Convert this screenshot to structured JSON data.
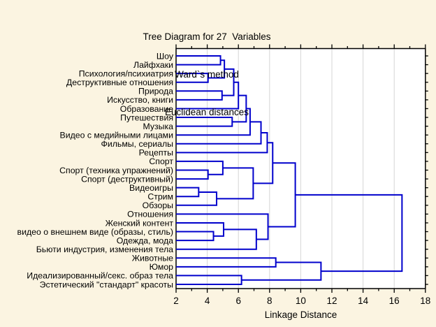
{
  "chart_data": {
    "type": "dendrogram",
    "orientation": "horizontal-leaves-left",
    "title_lines": [
      "Tree Diagram for 27  Variables",
      "Ward`s method",
      "Euclidean distances"
    ],
    "xlabel": "Linkage Distance",
    "x_axis": {
      "min": 2,
      "max": 18,
      "major_tick_step": 2,
      "minor_tick_step": 1,
      "tick_labels": [
        "2",
        "4",
        "6",
        "8",
        "10",
        "12",
        "14",
        "16",
        "18"
      ],
      "gridline_values": [
        4,
        6,
        8,
        10,
        12,
        14,
        16
      ]
    },
    "grid": "vertical-major-only",
    "colors": {
      "line": "#0000CC",
      "background": "#FBF4E1",
      "plot_background": "#FFFFFF",
      "gridline": "#D6D6D6",
      "frame": "#000000",
      "text": "#000000"
    },
    "leaves": [
      "Шоу",
      "Лайфхаки",
      "Психология/психиатрия",
      "Деструктивные отношения",
      "Природа",
      "Искусство, книги",
      "Образование",
      "Путешествия",
      "Музыка",
      "Видео с медийными лицами",
      "Фильмы, сериалы",
      "Рецепты",
      "Спорт",
      "Спорт (техника упражнений)",
      "Спорт (деструктивный)",
      "Видеоигры",
      "Стрим",
      "Обзоры",
      "Отношения",
      "Женский контент",
      "видео о внешнем виде (образы, стиль)",
      "Одежда, мода",
      "Бьюти индустрия, изменения тела",
      "Животные",
      "Юмор",
      "Идеализированный/секс. образ тела",
      "Эстетический \"стандарт\" красоты"
    ],
    "merges": [
      {
        "children": [
          0,
          1
        ],
        "distance": 4.85
      },
      {
        "children": [
          2,
          3
        ],
        "distance": 4.05
      },
      {
        "children": [
          27,
          28
        ],
        "distance": 5.1
      },
      {
        "children": [
          4,
          5
        ],
        "distance": 4.95
      },
      {
        "children": [
          29,
          30
        ],
        "distance": 5.7
      },
      {
        "children": [
          31,
          6
        ],
        "distance": 6.0
      },
      {
        "children": [
          7,
          8
        ],
        "distance": 5.6
      },
      {
        "children": [
          32,
          33
        ],
        "distance": 6.5
      },
      {
        "children": [
          34,
          9
        ],
        "distance": 6.75
      },
      {
        "children": [
          35,
          10
        ],
        "distance": 7.45
      },
      {
        "children": [
          36,
          11
        ],
        "distance": 7.85
      },
      {
        "children": [
          13,
          14
        ],
        "distance": 4.05
      },
      {
        "children": [
          12,
          38
        ],
        "distance": 5.0
      },
      {
        "children": [
          15,
          16
        ],
        "distance": 3.45
      },
      {
        "children": [
          40,
          17
        ],
        "distance": 4.6
      },
      {
        "children": [
          39,
          41
        ],
        "distance": 6.95
      },
      {
        "children": [
          37,
          42
        ],
        "distance": 8.2
      },
      {
        "children": [
          20,
          21
        ],
        "distance": 4.4
      },
      {
        "children": [
          19,
          44
        ],
        "distance": 5.05
      },
      {
        "children": [
          45,
          22
        ],
        "distance": 7.15
      },
      {
        "children": [
          18,
          46
        ],
        "distance": 7.9
      },
      {
        "children": [
          43,
          47
        ],
        "distance": 9.65
      },
      {
        "children": [
          23,
          24
        ],
        "distance": 8.4
      },
      {
        "children": [
          25,
          26
        ],
        "distance": 6.2
      },
      {
        "children": [
          49,
          50
        ],
        "distance": 11.3
      },
      {
        "children": [
          48,
          51
        ],
        "distance": 16.5
      }
    ]
  }
}
